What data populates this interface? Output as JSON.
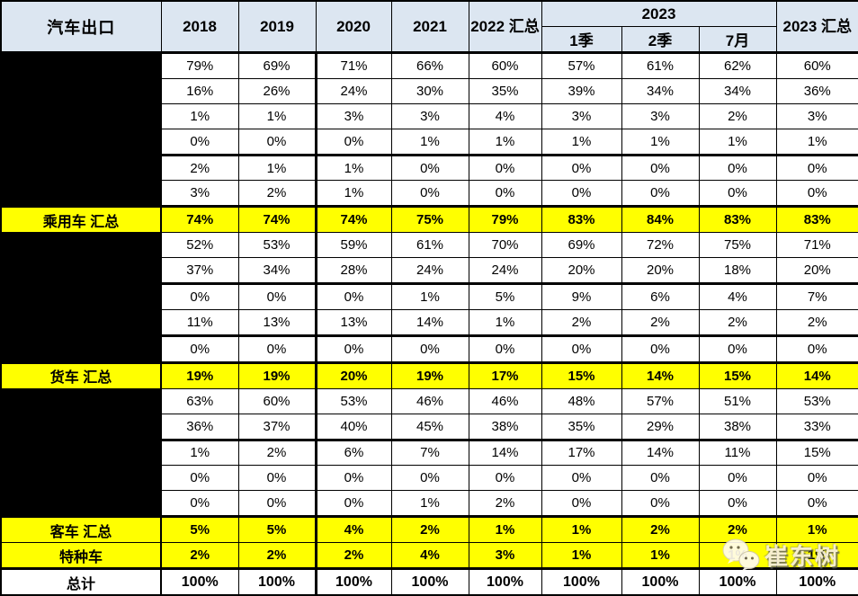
{
  "colors": {
    "header_bg": "#dce6f1",
    "highlight_row_bg": "#ffff00",
    "redacted_cell_bg": "#000000",
    "border": "#000000"
  },
  "header": {
    "title": "汽车出口",
    "years": [
      "2018",
      "2019",
      "2020",
      "2021"
    ],
    "total_2022": "2022 汇总",
    "group_2023": "2023",
    "sub_2023": [
      "1季",
      "2季",
      "7月"
    ],
    "total_2023": "2023 汇总"
  },
  "watermark": {
    "text": "崔东树",
    "icon": "wechat-bubbles-icon"
  },
  "chart_data": {
    "type": "table",
    "title": "汽车出口",
    "columns": [
      "汽车出口",
      "2018",
      "2019",
      "2020",
      "2021",
      "2022 汇总",
      "2023 1季",
      "2023 2季",
      "2023 7月",
      "2023 汇总"
    ],
    "rows": [
      {
        "label": "",
        "kind": "redacted",
        "values": [
          "79%",
          "69%",
          "71%",
          "66%",
          "60%",
          "57%",
          "61%",
          "62%",
          "60%"
        ]
      },
      {
        "label": "",
        "kind": "redacted",
        "values": [
          "16%",
          "26%",
          "24%",
          "30%",
          "35%",
          "39%",
          "34%",
          "34%",
          "36%"
        ]
      },
      {
        "label": "",
        "kind": "redacted",
        "values": [
          "1%",
          "1%",
          "3%",
          "3%",
          "4%",
          "3%",
          "3%",
          "2%",
          "3%"
        ]
      },
      {
        "label": "",
        "kind": "redacted",
        "values": [
          "0%",
          "0%",
          "0%",
          "1%",
          "1%",
          "1%",
          "1%",
          "1%",
          "1%"
        ]
      },
      {
        "label": "",
        "kind": "redacted",
        "values": [
          "2%",
          "1%",
          "1%",
          "0%",
          "0%",
          "0%",
          "0%",
          "0%",
          "0%"
        ]
      },
      {
        "label": "",
        "kind": "redacted",
        "values": [
          "3%",
          "2%",
          "1%",
          "0%",
          "0%",
          "0%",
          "0%",
          "0%",
          "0%"
        ]
      },
      {
        "label": "乘用车 汇总",
        "kind": "summary",
        "values": [
          "74%",
          "74%",
          "74%",
          "75%",
          "79%",
          "83%",
          "84%",
          "83%",
          "83%"
        ]
      },
      {
        "label": "",
        "kind": "redacted",
        "values": [
          "52%",
          "53%",
          "59%",
          "61%",
          "70%",
          "69%",
          "72%",
          "75%",
          "71%"
        ]
      },
      {
        "label": "",
        "kind": "redacted",
        "values": [
          "37%",
          "34%",
          "28%",
          "24%",
          "24%",
          "20%",
          "20%",
          "18%",
          "20%"
        ]
      },
      {
        "label": "",
        "kind": "redacted",
        "values": [
          "0%",
          "0%",
          "0%",
          "1%",
          "5%",
          "9%",
          "6%",
          "4%",
          "7%"
        ]
      },
      {
        "label": "",
        "kind": "redacted",
        "values": [
          "11%",
          "13%",
          "13%",
          "14%",
          "1%",
          "2%",
          "2%",
          "2%",
          "2%"
        ]
      },
      {
        "label": "",
        "kind": "redacted",
        "values": [
          "0%",
          "0%",
          "0%",
          "0%",
          "0%",
          "0%",
          "0%",
          "0%",
          "0%"
        ]
      },
      {
        "label": "货车 汇总",
        "kind": "summary",
        "values": [
          "19%",
          "19%",
          "20%",
          "19%",
          "17%",
          "15%",
          "14%",
          "15%",
          "14%"
        ]
      },
      {
        "label": "",
        "kind": "redacted",
        "values": [
          "63%",
          "60%",
          "53%",
          "46%",
          "46%",
          "48%",
          "57%",
          "51%",
          "53%"
        ]
      },
      {
        "label": "",
        "kind": "redacted",
        "values": [
          "36%",
          "37%",
          "40%",
          "45%",
          "38%",
          "35%",
          "29%",
          "38%",
          "33%"
        ]
      },
      {
        "label": "",
        "kind": "redacted",
        "values": [
          "1%",
          "2%",
          "6%",
          "7%",
          "14%",
          "17%",
          "14%",
          "11%",
          "15%"
        ]
      },
      {
        "label": "",
        "kind": "redacted",
        "values": [
          "0%",
          "0%",
          "0%",
          "0%",
          "0%",
          "0%",
          "0%",
          "0%",
          "0%"
        ]
      },
      {
        "label": "",
        "kind": "redacted",
        "values": [
          "0%",
          "0%",
          "0%",
          "1%",
          "2%",
          "0%",
          "0%",
          "0%",
          "0%"
        ]
      },
      {
        "label": "客车 汇总",
        "kind": "summary",
        "values": [
          "5%",
          "5%",
          "4%",
          "2%",
          "1%",
          "1%",
          "2%",
          "2%",
          "1%"
        ]
      },
      {
        "label": "特种车",
        "kind": "summary",
        "values": [
          "2%",
          "2%",
          "2%",
          "4%",
          "3%",
          "1%",
          "1%",
          "1%",
          "1%"
        ]
      },
      {
        "label": "总计",
        "kind": "total",
        "values": [
          "100%",
          "100%",
          "100%",
          "100%",
          "100%",
          "100%",
          "100%",
          "100%",
          "100%"
        ]
      }
    ]
  }
}
